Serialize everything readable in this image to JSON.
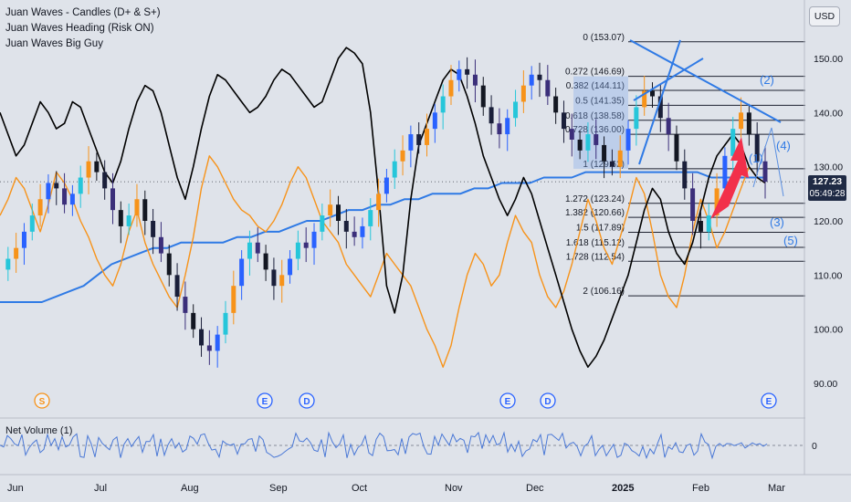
{
  "header": {
    "indicators": [
      "Juan Waves - Candles (D+ & S+)",
      "Juan Waves Heading (Risk ON)",
      "Juan Waves Big Guy"
    ],
    "currency_button": "USD"
  },
  "price_axis": {
    "ticks": [
      "150.00",
      "140.00",
      "130.00",
      "120.00",
      "110.00",
      "100.00",
      "90.00"
    ],
    "last_price": "127.23",
    "countdown": "05:49:28"
  },
  "time_axis": {
    "labels": [
      "Jun",
      "Jul",
      "Aug",
      "Sep",
      "Oct",
      "Nov",
      "Dec",
      "2025",
      "Feb",
      "Mar"
    ]
  },
  "fibonacci": {
    "levels": [
      {
        "label": "0 (153.07)",
        "price": 153.07
      },
      {
        "label": "0.272 (146.69)",
        "price": 146.69
      },
      {
        "label": "0.382 (144.11)",
        "price": 144.11
      },
      {
        "label": "0.5 (141.35)",
        "price": 141.35
      },
      {
        "label": "0.618 (138.58)",
        "price": 138.58
      },
      {
        "label": "0.728 (136.00)",
        "price": 136.0
      },
      {
        "label": "1 (129.62)",
        "price": 129.62
      },
      {
        "label": "1.272 (123.24)",
        "price": 123.24
      },
      {
        "label": "1.382 (120.66)",
        "price": 120.66
      },
      {
        "label": "1.5 (117.89)",
        "price": 117.89
      },
      {
        "label": "1.618 (115.12)",
        "price": 115.12
      },
      {
        "label": "1.728 (112.54)",
        "price": 112.54
      },
      {
        "label": "2 (106.16)",
        "price": 106.16
      }
    ]
  },
  "wave_labels": [
    "(1)",
    "(2)",
    "(3)",
    "(4)",
    "(5)"
  ],
  "event_markers": [
    "S",
    "E",
    "D",
    "E",
    "D",
    "E"
  ],
  "subpane": {
    "title": "Net Volume (1)",
    "zero_tick": "0"
  },
  "colors": {
    "background": "#dfe3ea",
    "up_candle": "#2962ff",
    "down_candle": "#131722",
    "orange_line": "#f7931a",
    "black_line": "#000000",
    "ma_line": "#2f7ae5",
    "highlight_arrow": "#f2304a"
  },
  "chart_data": {
    "type": "candlestick",
    "ylim": [
      88,
      155
    ],
    "x_categories": [
      "Jun",
      "Jul",
      "Aug",
      "Sep",
      "Oct",
      "Nov",
      "Dec",
      "2025",
      "Feb",
      "Mar"
    ],
    "close_series": [
      111,
      113,
      115,
      118,
      121,
      124,
      127,
      126,
      123,
      125,
      128,
      131,
      129,
      126,
      122,
      119,
      121,
      124,
      120,
      117,
      114,
      110,
      106,
      103,
      100,
      97,
      96,
      99,
      103,
      108,
      113,
      116,
      114,
      111,
      108,
      110,
      113,
      116,
      115,
      118,
      121,
      123,
      120,
      118,
      117,
      119,
      122,
      125,
      128,
      131,
      133,
      136,
      134,
      137,
      140,
      143,
      146,
      148,
      147,
      145,
      141,
      138,
      136,
      139,
      142,
      145,
      147,
      146,
      143,
      140,
      137,
      135,
      133,
      136,
      134,
      131,
      130,
      133,
      137,
      141,
      144,
      143,
      139,
      136,
      131,
      126,
      120,
      118,
      121,
      126,
      132,
      137,
      140,
      136,
      131,
      127.23
    ],
    "orange_line": [
      121,
      124,
      128,
      126,
      122,
      118,
      123,
      129,
      127,
      124,
      120,
      117,
      113,
      110,
      108,
      112,
      118,
      122,
      116,
      112,
      109,
      106,
      104,
      110,
      117,
      126,
      132,
      130,
      127,
      124,
      122,
      121,
      119,
      118,
      120,
      123,
      127,
      130,
      128,
      124,
      120,
      118,
      116,
      112,
      110,
      108,
      106,
      110,
      114,
      112,
      110,
      108,
      104,
      100,
      97,
      93,
      97,
      104,
      110,
      114,
      112,
      108,
      110,
      116,
      121,
      118,
      116,
      110,
      106,
      104,
      107,
      112,
      118,
      124,
      120,
      115,
      112,
      117,
      122,
      128,
      125,
      118,
      110,
      106,
      104,
      110,
      118,
      124,
      120,
      115,
      118,
      122,
      126,
      130,
      128,
      127
    ],
    "black_line": [
      140,
      136,
      132,
      134,
      138,
      142,
      140,
      137,
      138,
      142,
      141,
      137,
      133,
      129,
      127,
      131,
      137,
      142,
      145,
      144,
      140,
      134,
      128,
      124,
      130,
      137,
      143,
      147,
      146,
      144,
      142,
      140,
      141,
      143,
      146,
      148,
      147,
      145,
      143,
      141,
      142,
      146,
      150,
      152,
      151,
      149,
      140,
      125,
      108,
      103,
      110,
      124,
      134,
      138,
      142,
      146,
      148,
      147,
      143,
      138,
      132,
      128,
      124,
      121,
      124,
      128,
      125,
      120,
      115,
      110,
      105,
      100,
      96,
      93,
      95,
      98,
      102,
      106,
      110,
      116,
      122,
      126,
      124,
      118,
      114,
      112,
      116,
      122,
      128,
      132,
      134,
      136,
      134,
      130,
      128,
      127
    ],
    "ma_line": [
      105,
      105,
      105,
      105,
      106,
      107,
      108,
      110,
      112,
      113,
      114,
      115,
      115,
      116,
      116,
      116,
      116,
      117,
      117,
      118,
      118,
      119,
      120,
      120,
      121,
      122,
      122,
      123,
      123,
      124,
      124,
      125,
      125,
      125,
      126,
      126,
      127,
      127,
      127,
      128,
      128,
      128,
      129,
      129,
      129,
      129,
      129,
      129,
      129,
      129,
      129,
      128,
      128,
      128,
      128,
      128
    ],
    "net_volume": "oscillator around 0"
  }
}
